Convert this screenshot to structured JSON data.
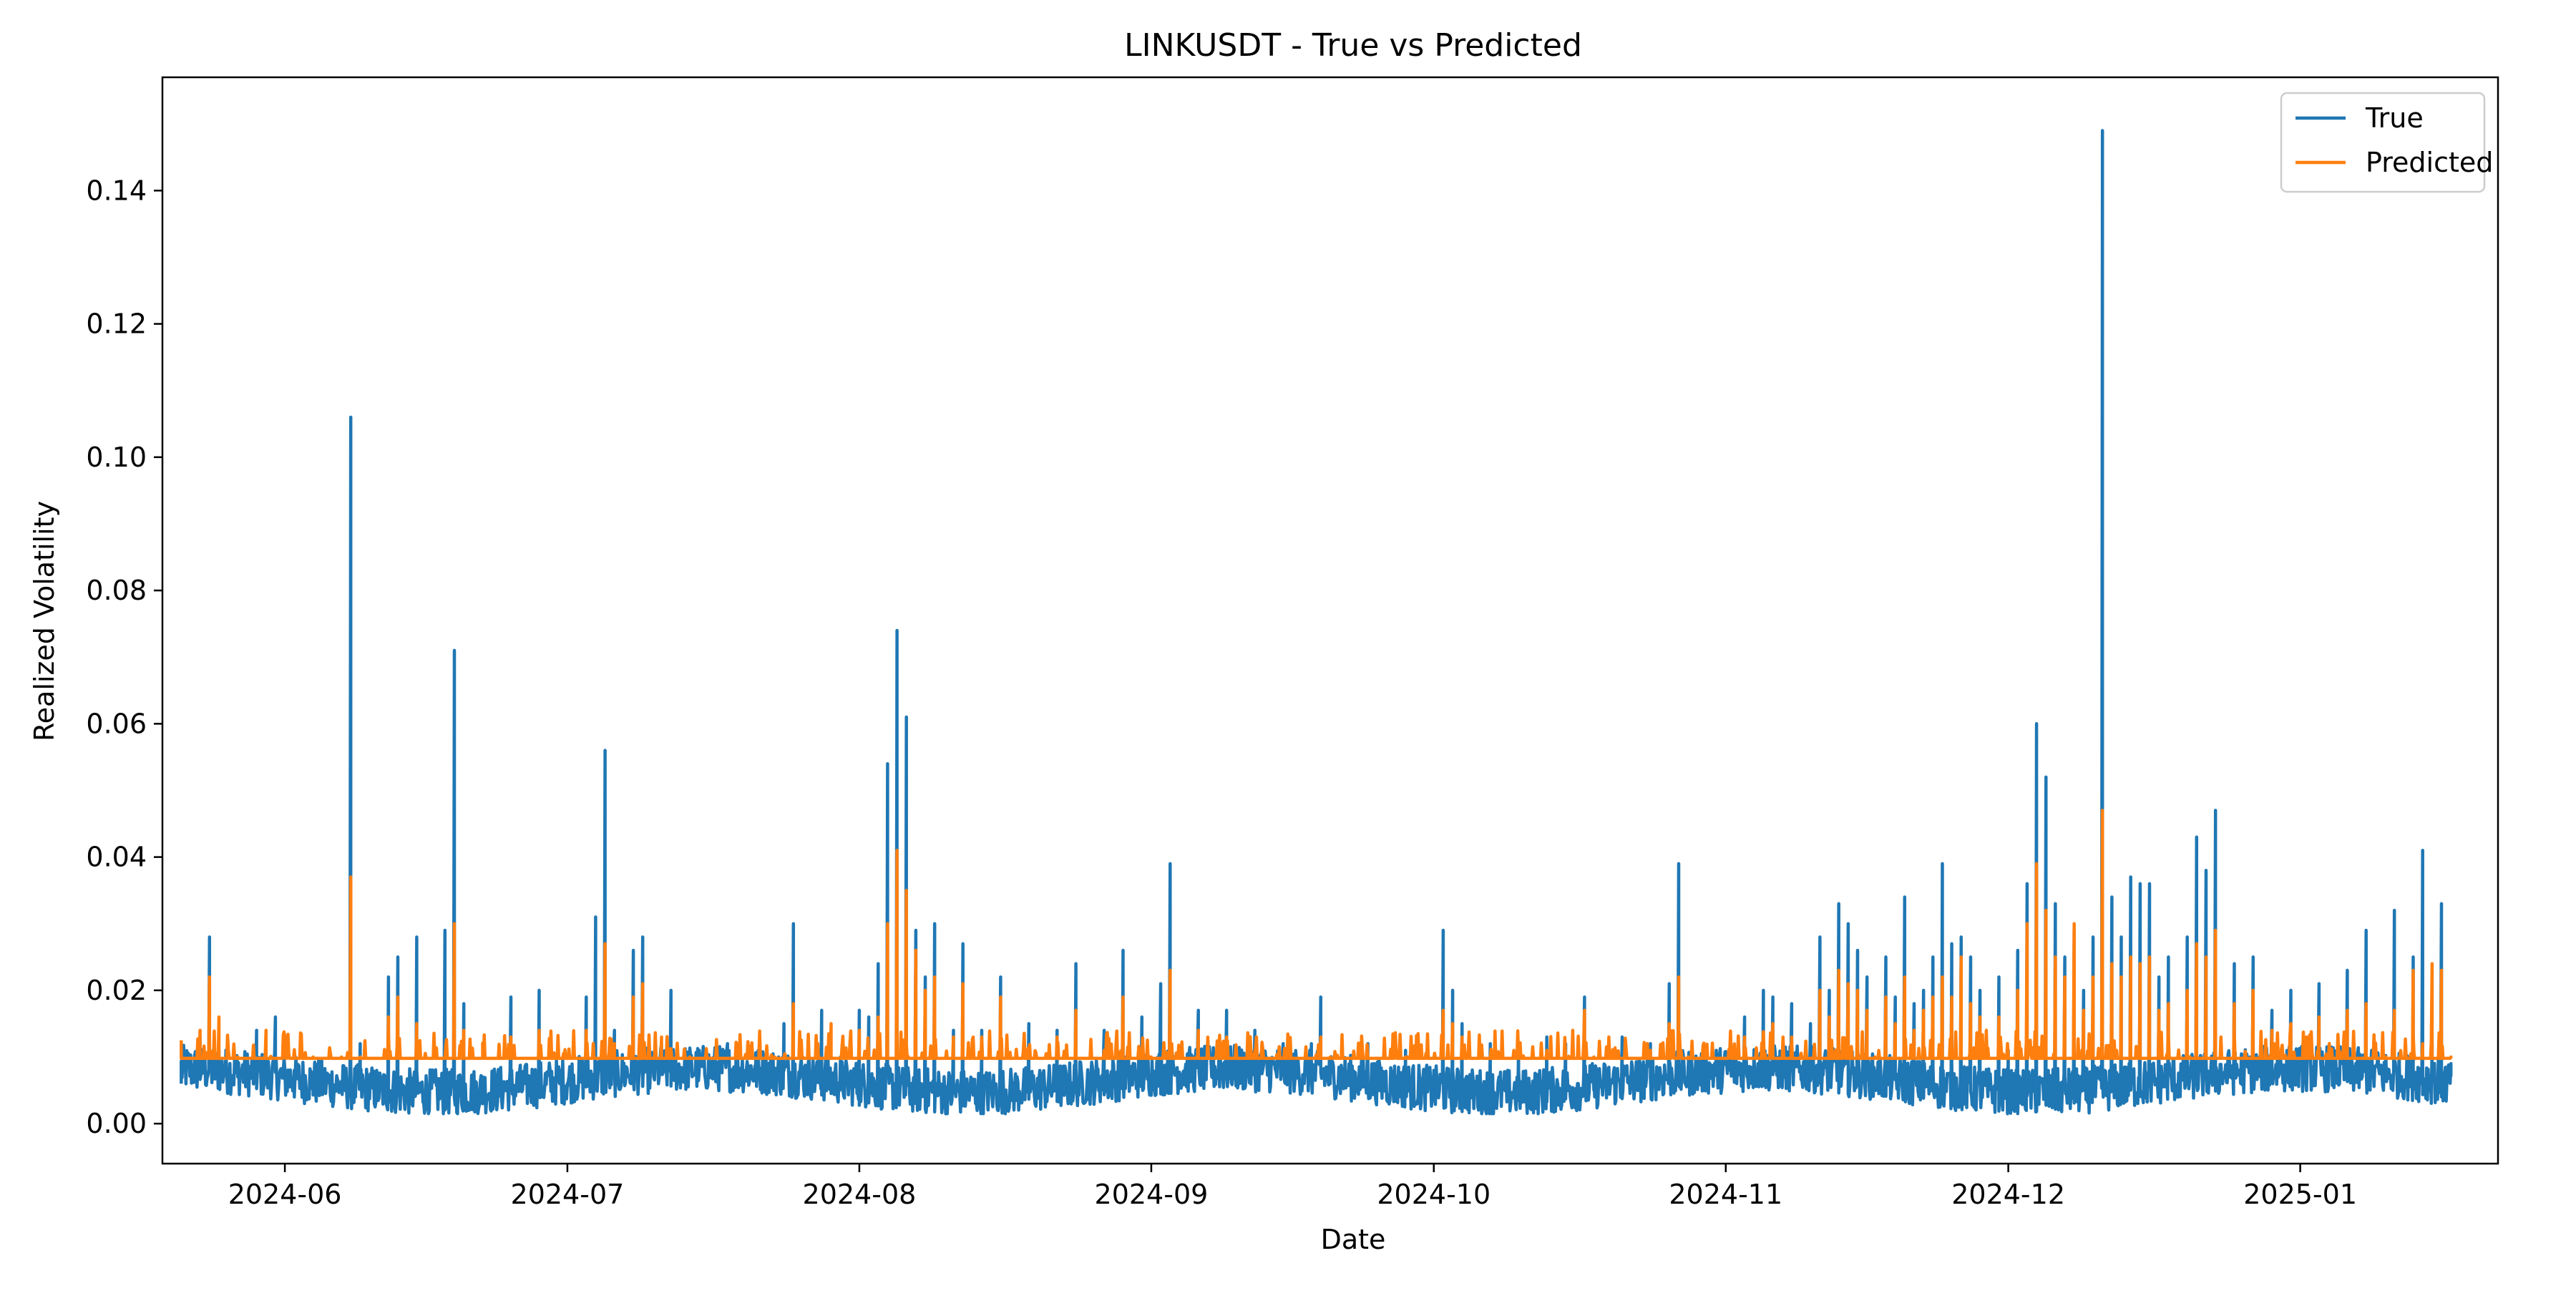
{
  "chart_data": {
    "type": "line",
    "title": "LINKUSDT - True vs Predicted",
    "xlabel": "Date",
    "ylabel": "Realized Volatility",
    "x_range": [
      "2024-05-19",
      "2025-01-22"
    ],
    "ylim": [
      -0.006,
      0.157
    ],
    "grid": false,
    "legend_position": "top-right",
    "x_ticks": [
      "2024-06-01",
      "2024-07-01",
      "2024-08-01",
      "2024-09-01",
      "2024-10-01",
      "2024-11-01",
      "2024-12-01",
      "2025-01-01"
    ],
    "x_tick_labels": [
      "2024-06",
      "2024-07",
      "2024-08",
      "2024-09",
      "2024-10",
      "2024-11",
      "2024-12",
      "2025-01"
    ],
    "y_ticks": [
      0.0,
      0.02,
      0.04,
      0.06,
      0.08,
      0.1,
      0.12,
      0.14
    ],
    "y_tick_labels": [
      "0.00",
      "0.02",
      "0.04",
      "0.06",
      "0.08",
      "0.10",
      "0.12",
      "0.14"
    ],
    "series": [
      {
        "name": "True",
        "color": "#1f77b4",
        "points": [
          [
            "2024-05-21",
            0.006
          ],
          [
            "2024-05-22",
            0.009
          ],
          [
            "2024-05-23",
            0.013
          ],
          [
            "2024-05-24",
            0.028
          ],
          [
            "2024-05-25",
            0.011
          ],
          [
            "2024-05-27",
            0.007
          ],
          [
            "2024-05-29",
            0.014
          ],
          [
            "2024-05-31",
            0.016
          ],
          [
            "2024-06-02",
            0.008
          ],
          [
            "2024-06-04",
            0.005
          ],
          [
            "2024-06-06",
            0.007
          ],
          [
            "2024-06-08",
            0.106
          ],
          [
            "2024-06-09",
            0.012
          ],
          [
            "2024-06-10",
            0.006
          ],
          [
            "2024-06-12",
            0.022
          ],
          [
            "2024-06-13",
            0.025
          ],
          [
            "2024-06-15",
            0.028
          ],
          [
            "2024-06-17",
            0.008
          ],
          [
            "2024-06-18",
            0.029
          ],
          [
            "2024-06-19",
            0.071
          ],
          [
            "2024-06-20",
            0.018
          ],
          [
            "2024-06-22",
            0.007
          ],
          [
            "2024-06-25",
            0.019
          ],
          [
            "2024-06-28",
            0.02
          ],
          [
            "2024-07-01",
            0.006
          ],
          [
            "2024-07-03",
            0.019
          ],
          [
            "2024-07-04",
            0.031
          ],
          [
            "2024-07-05",
            0.056
          ],
          [
            "2024-07-06",
            0.014
          ],
          [
            "2024-07-08",
            0.026
          ],
          [
            "2024-07-09",
            0.028
          ],
          [
            "2024-07-11",
            0.012
          ],
          [
            "2024-07-12",
            0.02
          ],
          [
            "2024-07-15",
            0.008
          ],
          [
            "2024-07-18",
            0.012
          ],
          [
            "2024-07-21",
            0.009
          ],
          [
            "2024-07-24",
            0.015
          ],
          [
            "2024-07-25",
            0.03
          ],
          [
            "2024-07-26",
            0.008
          ],
          [
            "2024-07-28",
            0.017
          ],
          [
            "2024-07-30",
            0.01
          ],
          [
            "2024-08-01",
            0.017
          ],
          [
            "2024-08-02",
            0.016
          ],
          [
            "2024-08-03",
            0.024
          ],
          [
            "2024-08-04",
            0.054
          ],
          [
            "2024-08-05",
            0.074
          ],
          [
            "2024-08-06",
            0.061
          ],
          [
            "2024-08-07",
            0.029
          ],
          [
            "2024-08-08",
            0.022
          ],
          [
            "2024-08-09",
            0.03
          ],
          [
            "2024-08-11",
            0.014
          ],
          [
            "2024-08-12",
            0.027
          ],
          [
            "2024-08-14",
            0.014
          ],
          [
            "2024-08-16",
            0.022
          ],
          [
            "2024-08-19",
            0.015
          ],
          [
            "2024-08-22",
            0.014
          ],
          [
            "2024-08-24",
            0.024
          ],
          [
            "2024-08-27",
            0.014
          ],
          [
            "2024-08-29",
            0.026
          ],
          [
            "2024-08-31",
            0.016
          ],
          [
            "2024-09-02",
            0.021
          ],
          [
            "2024-09-03",
            0.039
          ],
          [
            "2024-09-04",
            0.006
          ],
          [
            "2024-09-06",
            0.017
          ],
          [
            "2024-09-09",
            0.017
          ],
          [
            "2024-09-12",
            0.014
          ],
          [
            "2024-09-15",
            0.012
          ],
          [
            "2024-09-18",
            0.012
          ],
          [
            "2024-09-19",
            0.019
          ],
          [
            "2024-09-20",
            0.006
          ],
          [
            "2024-09-24",
            0.012
          ],
          [
            "2024-09-28",
            0.011
          ],
          [
            "2024-10-01",
            0.008
          ],
          [
            "2024-10-02",
            0.029
          ],
          [
            "2024-10-03",
            0.02
          ],
          [
            "2024-10-04",
            0.015
          ],
          [
            "2024-10-07",
            0.012
          ],
          [
            "2024-10-10",
            0.011
          ],
          [
            "2024-10-13",
            0.013
          ],
          [
            "2024-10-15",
            0.012
          ],
          [
            "2024-10-17",
            0.019
          ],
          [
            "2024-10-18",
            0.005
          ],
          [
            "2024-10-21",
            0.013
          ],
          [
            "2024-10-24",
            0.012
          ],
          [
            "2024-10-26",
            0.021
          ],
          [
            "2024-10-27",
            0.039
          ],
          [
            "2024-10-28",
            0.006
          ],
          [
            "2024-10-31",
            0.011
          ],
          [
            "2024-11-03",
            0.016
          ],
          [
            "2024-11-05",
            0.02
          ],
          [
            "2024-11-06",
            0.019
          ],
          [
            "2024-11-08",
            0.018
          ],
          [
            "2024-11-10",
            0.015
          ],
          [
            "2024-11-11",
            0.028
          ],
          [
            "2024-11-12",
            0.02
          ],
          [
            "2024-11-13",
            0.033
          ],
          [
            "2024-11-14",
            0.03
          ],
          [
            "2024-11-15",
            0.026
          ],
          [
            "2024-11-16",
            0.022
          ],
          [
            "2024-11-18",
            0.025
          ],
          [
            "2024-11-19",
            0.019
          ],
          [
            "2024-11-20",
            0.034
          ],
          [
            "2024-11-21",
            0.018
          ],
          [
            "2024-11-22",
            0.02
          ],
          [
            "2024-11-23",
            0.025
          ],
          [
            "2024-11-24",
            0.039
          ],
          [
            "2024-11-25",
            0.027
          ],
          [
            "2024-11-26",
            0.028
          ],
          [
            "2024-11-27",
            0.025
          ],
          [
            "2024-11-28",
            0.02
          ],
          [
            "2024-11-30",
            0.022
          ],
          [
            "2024-12-01",
            0.011
          ],
          [
            "2024-12-02",
            0.026
          ],
          [
            "2024-12-03",
            0.036
          ],
          [
            "2024-12-04",
            0.06
          ],
          [
            "2024-12-05",
            0.052
          ],
          [
            "2024-12-06",
            0.033
          ],
          [
            "2024-12-07",
            0.025
          ],
          [
            "2024-12-08",
            0.029
          ],
          [
            "2024-12-09",
            0.02
          ],
          [
            "2024-12-10",
            0.028
          ],
          [
            "2024-12-11",
            0.149
          ],
          [
            "2024-12-12",
            0.034
          ],
          [
            "2024-12-13",
            0.028
          ],
          [
            "2024-12-14",
            0.037
          ],
          [
            "2024-12-15",
            0.036
          ],
          [
            "2024-12-16",
            0.036
          ],
          [
            "2024-12-17",
            0.022
          ],
          [
            "2024-12-18",
            0.025
          ],
          [
            "2024-12-20",
            0.028
          ],
          [
            "2024-12-21",
            0.043
          ],
          [
            "2024-12-22",
            0.038
          ],
          [
            "2024-12-23",
            0.047
          ],
          [
            "2024-12-25",
            0.024
          ],
          [
            "2024-12-27",
            0.025
          ],
          [
            "2024-12-29",
            0.017
          ],
          [
            "2024-12-31",
            0.02
          ],
          [
            "2025-01-03",
            0.021
          ],
          [
            "2025-01-06",
            0.023
          ],
          [
            "2025-01-08",
            0.029
          ],
          [
            "2025-01-11",
            0.032
          ],
          [
            "2025-01-13",
            0.025
          ],
          [
            "2025-01-14",
            0.041
          ],
          [
            "2025-01-15",
            0.012
          ],
          [
            "2025-01-16",
            0.033
          ],
          [
            "2025-01-17",
            0.009
          ]
        ]
      },
      {
        "name": "Predicted",
        "color": "#ff7f0e",
        "points": [
          [
            "2024-05-21",
            0.0125
          ],
          [
            "2024-05-23",
            0.014
          ],
          [
            "2024-05-24",
            0.022
          ],
          [
            "2024-05-25",
            0.016
          ],
          [
            "2024-05-27",
            0.01
          ],
          [
            "2024-05-30",
            0.014
          ],
          [
            "2024-06-01",
            0.013
          ],
          [
            "2024-06-04",
            0.01
          ],
          [
            "2024-06-07",
            0.01
          ],
          [
            "2024-06-08",
            0.037
          ],
          [
            "2024-06-09",
            0.01
          ],
          [
            "2024-06-12",
            0.016
          ],
          [
            "2024-06-13",
            0.019
          ],
          [
            "2024-06-15",
            0.015
          ],
          [
            "2024-06-17",
            0.01
          ],
          [
            "2024-06-19",
            0.03
          ],
          [
            "2024-06-20",
            0.014
          ],
          [
            "2024-06-22",
            0.01
          ],
          [
            "2024-06-25",
            0.013
          ],
          [
            "2024-06-28",
            0.014
          ],
          [
            "2024-07-01",
            0.01
          ],
          [
            "2024-07-03",
            0.014
          ],
          [
            "2024-07-05",
            0.027
          ],
          [
            "2024-07-06",
            0.012
          ],
          [
            "2024-07-08",
            0.019
          ],
          [
            "2024-07-09",
            0.021
          ],
          [
            "2024-07-11",
            0.013
          ],
          [
            "2024-07-14",
            0.01
          ],
          [
            "2024-07-19",
            0.012
          ],
          [
            "2024-07-23",
            0.01
          ],
          [
            "2024-07-25",
            0.018
          ],
          [
            "2024-07-26",
            0.01
          ],
          [
            "2024-07-29",
            0.015
          ],
          [
            "2024-08-01",
            0.014
          ],
          [
            "2024-08-03",
            0.016
          ],
          [
            "2024-08-04",
            0.03
          ],
          [
            "2024-08-05",
            0.041
          ],
          [
            "2024-08-06",
            0.035
          ],
          [
            "2024-08-07",
            0.026
          ],
          [
            "2024-08-08",
            0.02
          ],
          [
            "2024-08-09",
            0.022
          ],
          [
            "2024-08-11",
            0.013
          ],
          [
            "2024-08-12",
            0.021
          ],
          [
            "2024-08-14",
            0.013
          ],
          [
            "2024-08-16",
            0.019
          ],
          [
            "2024-08-19",
            0.011
          ],
          [
            "2024-08-22",
            0.013
          ],
          [
            "2024-08-24",
            0.017
          ],
          [
            "2024-08-27",
            0.011
          ],
          [
            "2024-08-29",
            0.019
          ],
          [
            "2024-09-01",
            0.01
          ],
          [
            "2024-09-03",
            0.023
          ],
          [
            "2024-09-04",
            0.01
          ],
          [
            "2024-09-06",
            0.014
          ],
          [
            "2024-09-09",
            0.013
          ],
          [
            "2024-09-12",
            0.011
          ],
          [
            "2024-09-19",
            0.013
          ],
          [
            "2024-09-20",
            0.01
          ],
          [
            "2024-09-28",
            0.01
          ],
          [
            "2024-10-02",
            0.017
          ],
          [
            "2024-10-03",
            0.015
          ],
          [
            "2024-10-04",
            0.013
          ],
          [
            "2024-10-07",
            0.01
          ],
          [
            "2024-10-13",
            0.011
          ],
          [
            "2024-10-17",
            0.017
          ],
          [
            "2024-10-18",
            0.01
          ],
          [
            "2024-10-24",
            0.011
          ],
          [
            "2024-10-26",
            0.015
          ],
          [
            "2024-10-27",
            0.022
          ],
          [
            "2024-10-28",
            0.01
          ],
          [
            "2024-11-03",
            0.013
          ],
          [
            "2024-11-06",
            0.015
          ],
          [
            "2024-11-08",
            0.013
          ],
          [
            "2024-11-11",
            0.02
          ],
          [
            "2024-11-12",
            0.016
          ],
          [
            "2024-11-13",
            0.023
          ],
          [
            "2024-11-14",
            0.021
          ],
          [
            "2024-11-15",
            0.02
          ],
          [
            "2024-11-16",
            0.017
          ],
          [
            "2024-11-18",
            0.019
          ],
          [
            "2024-11-19",
            0.015
          ],
          [
            "2024-11-20",
            0.022
          ],
          [
            "2024-11-21",
            0.014
          ],
          [
            "2024-11-22",
            0.017
          ],
          [
            "2024-11-23",
            0.019
          ],
          [
            "2024-11-24",
            0.022
          ],
          [
            "2024-11-25",
            0.019
          ],
          [
            "2024-11-26",
            0.025
          ],
          [
            "2024-11-27",
            0.018
          ],
          [
            "2024-11-28",
            0.016
          ],
          [
            "2024-11-30",
            0.016
          ],
          [
            "2024-12-01",
            0.01
          ],
          [
            "2024-12-02",
            0.02
          ],
          [
            "2024-12-03",
            0.03
          ],
          [
            "2024-12-04",
            0.039
          ],
          [
            "2024-12-05",
            0.032
          ],
          [
            "2024-12-06",
            0.025
          ],
          [
            "2024-12-07",
            0.022
          ],
          [
            "2024-12-08",
            0.03
          ],
          [
            "2024-12-09",
            0.017
          ],
          [
            "2024-12-10",
            0.022
          ],
          [
            "2024-12-11",
            0.047
          ],
          [
            "2024-12-12",
            0.024
          ],
          [
            "2024-12-13",
            0.022
          ],
          [
            "2024-12-14",
            0.025
          ],
          [
            "2024-12-15",
            0.024
          ],
          [
            "2024-12-16",
            0.025
          ],
          [
            "2024-12-17",
            0.017
          ],
          [
            "2024-12-18",
            0.018
          ],
          [
            "2024-12-20",
            0.02
          ],
          [
            "2024-12-21",
            0.027
          ],
          [
            "2024-12-22",
            0.025
          ],
          [
            "2024-12-23",
            0.029
          ],
          [
            "2024-12-25",
            0.018
          ],
          [
            "2024-12-27",
            0.02
          ],
          [
            "2024-12-29",
            0.014
          ],
          [
            "2024-12-31",
            0.015
          ],
          [
            "2025-01-03",
            0.016
          ],
          [
            "2025-01-06",
            0.017
          ],
          [
            "2025-01-08",
            0.018
          ],
          [
            "2025-01-11",
            0.017
          ],
          [
            "2025-01-13",
            0.023
          ],
          [
            "2025-01-14",
            0.012
          ],
          [
            "2025-01-15",
            0.024
          ],
          [
            "2025-01-16",
            0.023
          ],
          [
            "2025-01-17",
            0.01
          ]
        ]
      }
    ]
  }
}
